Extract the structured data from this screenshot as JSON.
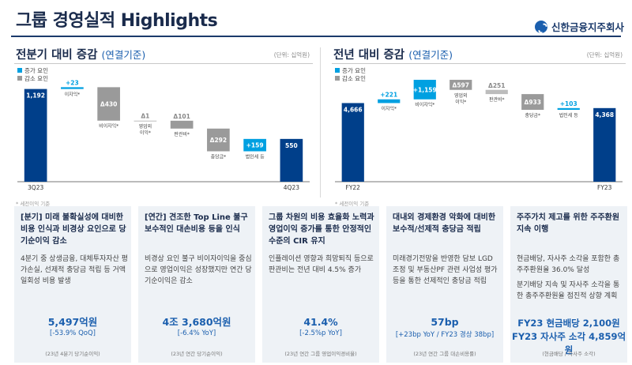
{
  "header": {
    "title": "그룹 경영실적 Highlights",
    "logo_text": "신한금융지주회사"
  },
  "chart_data": [
    {
      "type": "waterfall",
      "title": "전분기 대비 증감",
      "subtitle": "(연결기준)",
      "unit": "(단위: 십억원)",
      "legend": [
        "증가 요인",
        "감소 요인"
      ],
      "colors": {
        "total": "#003f8a",
        "increase": "#00a0e1",
        "decrease": "#9a9a9a",
        "neutral": "#bcbcbc"
      },
      "ylim": [
        0,
        1300
      ],
      "items": [
        {
          "label": "3Q23",
          "value": 1192,
          "value_text": "1,192",
          "kind": "total"
        },
        {
          "label": "이자익*",
          "value": 23,
          "value_text": "+23",
          "kind": "increase"
        },
        {
          "label": "비이자익*",
          "value": -430,
          "value_text": "Δ430",
          "kind": "decrease"
        },
        {
          "label": "영업외\n이익*",
          "value": -1,
          "value_text": "Δ1",
          "kind": "neutral"
        },
        {
          "label": "판관비*",
          "value": -101,
          "value_text": "Δ101",
          "kind": "decrease"
        },
        {
          "label": "충당금*",
          "value": -292,
          "value_text": "Δ292",
          "kind": "decrease"
        },
        {
          "label": "법인세 등",
          "value": 159,
          "value_text": "+159",
          "kind": "increase"
        },
        {
          "label": "4Q23",
          "value": 550,
          "value_text": "550",
          "kind": "total"
        }
      ],
      "footnote": "* 세전이익 기준"
    },
    {
      "type": "waterfall",
      "title": "전년 대비 증감",
      "subtitle": "(연결기준)",
      "unit": "(단위: 십억원)",
      "legend": [
        "증가 요인",
        "감소 요인"
      ],
      "colors": {
        "total": "#003f8a",
        "increase": "#00a0e1",
        "decrease": "#9a9a9a",
        "neutral": "#bcbcbc"
      },
      "ylim": [
        0,
        6000
      ],
      "items": [
        {
          "label": "FY22",
          "value": 4666,
          "value_text": "4,666",
          "kind": "total"
        },
        {
          "label": "이자익*",
          "value": 221,
          "value_text": "+221",
          "kind": "increase"
        },
        {
          "label": "비이자익*",
          "value": 1159,
          "value_text": "+1,159",
          "kind": "increase"
        },
        {
          "label": "영업외\n이익*",
          "value": -597,
          "value_text": "Δ597",
          "kind": "decrease"
        },
        {
          "label": "판관비*",
          "value": -251,
          "value_text": "Δ251",
          "kind": "neutral"
        },
        {
          "label": "충당금*",
          "value": -933,
          "value_text": "Δ933",
          "kind": "decrease"
        },
        {
          "label": "법인세 등",
          "value": 103,
          "value_text": "+103",
          "kind": "increase"
        },
        {
          "label": "FY23",
          "value": 4368,
          "value_text": "4,368",
          "kind": "total"
        }
      ],
      "footnote": "* 세전이익 기준"
    }
  ],
  "cards": [
    {
      "heading": "[분기] 미래 불확실성에 대비한 비용 인식과 비경상 요인으로 당기순이익 감소",
      "body": [
        "4분기 중 상생금융, 대체투자자산 평가손실, 선제적 충당금 적립 등 거액 일회성 비용 발생"
      ],
      "big": "5,497억원",
      "sub": "[-53.9% QoQ]",
      "note": "(23년 4분기 당기순이익)"
    },
    {
      "heading": "[연간] 견조한 Top Line 불구 보수적인 대손비용 등을 인식",
      "body": [
        "비경상 요인 불구 비이자이익을 중심으로 영업이익은 성장했지만 연간 당기순이익은 감소"
      ],
      "big": "4조 3,680억원",
      "sub": "[-6.4% YoY]",
      "note": "(23년 연간 당기순이익)"
    },
    {
      "heading": "그룹 차원의 비용 효율화 노력과 영업이익 증가를 통한 안정적인 수준의 CIR 유지",
      "body": [
        "인플레이션 영향과 희망퇴직 등으로 판관비는 전년 대비 4.5% 증가"
      ],
      "big": "41.4%",
      "sub": "[-2.5%p YoY]",
      "note": "(23년 연간 그룹 영업이익경비율)"
    },
    {
      "heading": "대내외 경제환경 악화에 대비한 보수적/선제적 충당금 적립",
      "body": [
        "미래경기전망을 반영한 담보 LGD 조정 및 부동산PF 관련 사업성 평가 등을 통한 선제적인 충당금 적립"
      ],
      "big": "57bp",
      "sub": "[+23bp YoY / FY23 경상 38bp]",
      "note": "(23년 연간 그룹 대손비용률)"
    },
    {
      "heading": "주주가치 제고를 위한 주주환원 지속 이행",
      "body": [
        "현금배당, 자사주 소각을 포함한 총주주환원율 36.0% 달성",
        "분기배당 지속 및 자사주 소각을 통한 총주주환원율 점진적 상향 계획"
      ],
      "big": "FY23 현금배당 2,100원\nFY23 자사주 소각 4,859억원",
      "sub": "",
      "note": "(현금배당 / 자사주 소각)"
    }
  ]
}
